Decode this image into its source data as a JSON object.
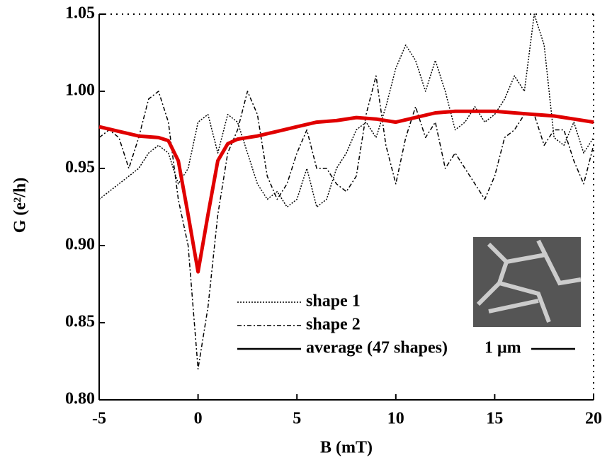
{
  "chart_data": {
    "type": "line",
    "xlabel": "B (mT)",
    "ylabel": "G (e²/h)",
    "xlim": [
      -5,
      20
    ],
    "ylim": [
      0.8,
      1.05
    ],
    "xticks": [
      -5,
      0,
      5,
      10,
      15,
      20
    ],
    "yticks": [
      {
        "value": 0.8,
        "label": "0.80"
      },
      0.85,
      {
        "value": 0.9,
        "label": "0.90"
      },
      0.95,
      {
        "value": 1.0,
        "label": "1.00"
      },
      1.05
    ],
    "series": [
      {
        "name": "shape 1",
        "color": "#000000",
        "linestyle": "dotted",
        "x": [
          -5,
          -4.5,
          -4,
          -3.5,
          -3,
          -2.5,
          -2,
          -1.5,
          -1,
          -0.5,
          0,
          0.5,
          1,
          1.5,
          2,
          2.5,
          3,
          3.5,
          4,
          4.5,
          5,
          5.5,
          6,
          6.5,
          7,
          7.5,
          8,
          8.5,
          9,
          9.5,
          10,
          10.5,
          11,
          11.5,
          12,
          12.5,
          13,
          13.5,
          14,
          14.5,
          15,
          15.5,
          16,
          16.5,
          17,
          17.5,
          18,
          18.5,
          19,
          19.5,
          20
        ],
        "values": [
          0.93,
          0.935,
          0.94,
          0.945,
          0.95,
          0.96,
          0.965,
          0.96,
          0.94,
          0.95,
          0.98,
          0.985,
          0.96,
          0.985,
          0.98,
          0.96,
          0.94,
          0.93,
          0.935,
          0.925,
          0.93,
          0.95,
          0.925,
          0.93,
          0.95,
          0.96,
          0.975,
          0.98,
          0.97,
          0.99,
          1.015,
          1.03,
          1.02,
          1.0,
          1.02,
          1.0,
          0.975,
          0.98,
          0.99,
          0.98,
          0.985,
          0.995,
          1.01,
          1.0,
          1.05,
          1.03,
          0.97,
          0.965,
          0.98,
          0.96,
          0.97
        ]
      },
      {
        "name": "shape 2",
        "color": "#000000",
        "linestyle": "dashdot",
        "x": [
          -5,
          -4.5,
          -4,
          -3.5,
          -3,
          -2.5,
          -2,
          -1.5,
          -1,
          -0.5,
          0,
          0.5,
          1,
          1.5,
          2,
          2.5,
          3,
          3.5,
          4,
          4.5,
          5,
          5.5,
          6,
          6.5,
          7,
          7.5,
          8,
          8.5,
          9,
          9.5,
          10,
          10.5,
          11,
          11.5,
          12,
          12.5,
          13,
          13.5,
          14,
          14.5,
          15,
          15.5,
          16,
          16.5,
          17,
          17.5,
          18,
          18.5,
          19,
          19.5,
          20
        ],
        "values": [
          0.97,
          0.975,
          0.97,
          0.95,
          0.97,
          0.995,
          1.0,
          0.98,
          0.93,
          0.9,
          0.82,
          0.86,
          0.92,
          0.96,
          0.975,
          1.0,
          0.985,
          0.945,
          0.93,
          0.94,
          0.96,
          0.975,
          0.95,
          0.95,
          0.94,
          0.935,
          0.945,
          0.985,
          1.01,
          0.965,
          0.94,
          0.97,
          0.99,
          0.97,
          0.98,
          0.95,
          0.96,
          0.95,
          0.94,
          0.93,
          0.945,
          0.97,
          0.975,
          0.985,
          0.985,
          0.965,
          0.975,
          0.975,
          0.955,
          0.94,
          0.965
        ]
      },
      {
        "name": "average (47 shapes)",
        "color": "#e00000",
        "linestyle": "solid",
        "x": [
          -5,
          -4,
          -3,
          -2,
          -1.5,
          -1,
          -0.5,
          0,
          0.5,
          1,
          1.5,
          2,
          3,
          4,
          5,
          6,
          7,
          8,
          9,
          10,
          11,
          12,
          13,
          14,
          15,
          16,
          17,
          18,
          19,
          20
        ],
        "values": [
          0.977,
          0.974,
          0.971,
          0.97,
          0.968,
          0.955,
          0.92,
          0.883,
          0.92,
          0.955,
          0.966,
          0.969,
          0.971,
          0.974,
          0.977,
          0.98,
          0.981,
          0.983,
          0.982,
          0.98,
          0.983,
          0.986,
          0.987,
          0.987,
          0.987,
          0.986,
          0.985,
          0.984,
          0.982,
          0.98
        ]
      }
    ],
    "inset_scale_label": "1 μm"
  }
}
